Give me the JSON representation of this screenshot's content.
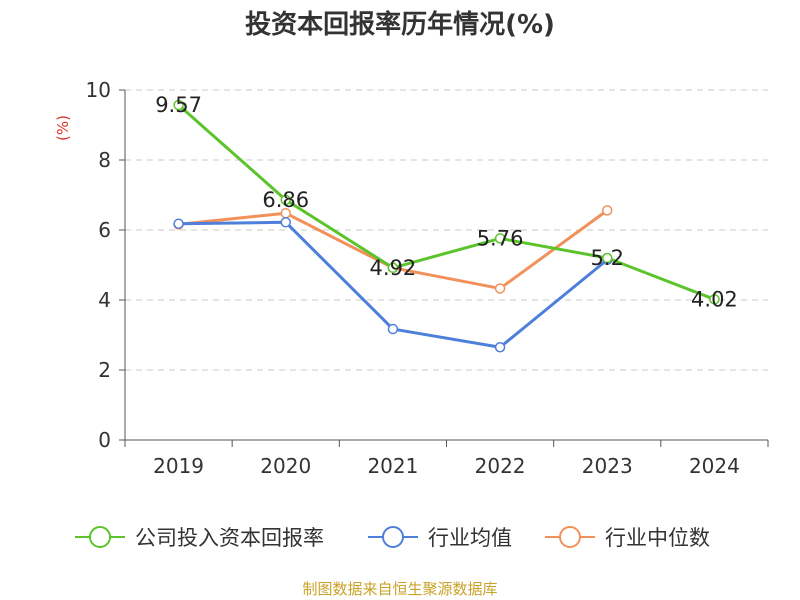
{
  "chart_data": {
    "type": "line",
    "title": "投资本回报率历年情况(%)",
    "ylabel": "(%)",
    "xlabel": "",
    "ylim": [
      0,
      10
    ],
    "yticks": [
      0,
      2,
      4,
      6,
      8,
      10
    ],
    "categories": [
      "2019",
      "2020",
      "2021",
      "2022",
      "2023",
      "2024"
    ],
    "grid": true,
    "legend_position": "bottom",
    "series": [
      {
        "name": "公司投入资本回报率",
        "color": "#5cc42b",
        "values": [
          9.57,
          6.86,
          4.92,
          5.76,
          5.2,
          4.02
        ],
        "labels": [
          "9.57",
          "6.86",
          "4.92",
          "5.76",
          "5.2",
          "4.02"
        ]
      },
      {
        "name": "行业均值",
        "color": "#4e7fdb",
        "values": [
          6.18,
          6.22,
          3.17,
          2.65,
          5.15,
          null
        ]
      },
      {
        "name": "行业中位数",
        "color": "#f2905a",
        "values": [
          6.16,
          6.48,
          4.92,
          4.33,
          6.56,
          null
        ]
      }
    ]
  },
  "source": "制图数据来自恒生聚源数据库"
}
